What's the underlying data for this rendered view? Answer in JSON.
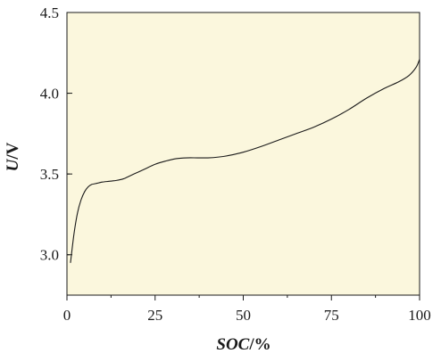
{
  "chart_data": {
    "type": "line",
    "title": "",
    "xlabel": "SOC/%",
    "xlabel_var": "SOC",
    "xlabel_unit": "/%",
    "ylabel": "U/V",
    "ylabel_var": "U",
    "ylabel_unit": "/V",
    "xlim": [
      0,
      100
    ],
    "ylim": [
      2.75,
      4.5
    ],
    "xticks": [
      "0",
      "25",
      "50",
      "75",
      "100"
    ],
    "yticks": [
      "3.0",
      "3.5",
      "4.0",
      "4.5"
    ],
    "grid": false,
    "background_color": "#fbf7dd",
    "line_color": "#1a1a1a",
    "series": [
      {
        "x": [
          1,
          2,
          3,
          4,
          5,
          6,
          7,
          8,
          9,
          10,
          12,
          14,
          16,
          18,
          20,
          22,
          25,
          28,
          31,
          34,
          37,
          40,
          43,
          46,
          50,
          55,
          60,
          65,
          70,
          75,
          80,
          85,
          90,
          94,
          97,
          99,
          100
        ],
        "y": [
          2.95,
          3.13,
          3.26,
          3.34,
          3.39,
          3.42,
          3.435,
          3.44,
          3.445,
          3.45,
          3.455,
          3.46,
          3.47,
          3.49,
          3.51,
          3.53,
          3.56,
          3.58,
          3.595,
          3.6,
          3.6,
          3.6,
          3.605,
          3.615,
          3.635,
          3.67,
          3.71,
          3.75,
          3.79,
          3.84,
          3.9,
          3.97,
          4.03,
          4.07,
          4.11,
          4.16,
          4.21
        ]
      }
    ]
  }
}
